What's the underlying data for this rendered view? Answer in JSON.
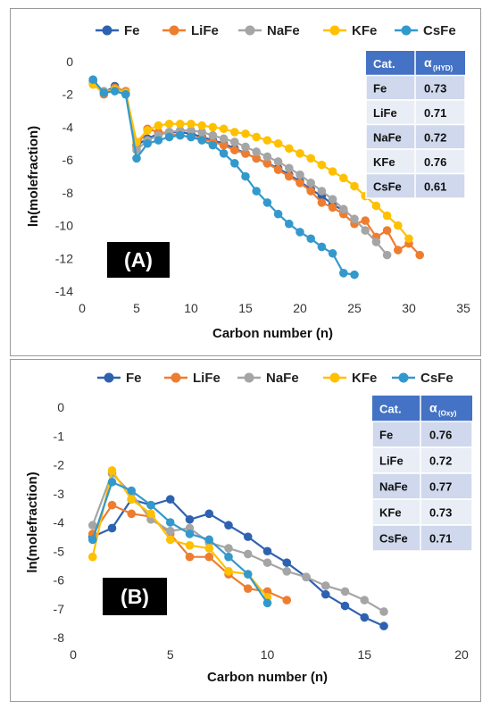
{
  "chart_data": [
    {
      "type": "line",
      "panel_label": "(A)",
      "xlabel": "Carbon number (n)",
      "ylabel": "ln(molefraction)",
      "xlim": [
        0,
        35
      ],
      "ylim": [
        -14,
        0
      ],
      "xticks": [
        "0",
        "5",
        "10",
        "15",
        "20",
        "25",
        "30",
        "35"
      ],
      "yticks": [
        "0",
        "-2",
        "-4",
        "-6",
        "-8",
        "-10",
        "-12",
        "-14"
      ],
      "grid": false,
      "legend_position": "top",
      "series": [
        {
          "name": "Fe",
          "color": "#2e62b0",
          "points": [
            [
              1,
              -1.2
            ],
            [
              2,
              -1.9
            ],
            [
              3,
              -1.5
            ],
            [
              4,
              -1.9
            ],
            [
              5,
              -5.1
            ],
            [
              6,
              -4.7
            ],
            [
              7,
              -4.4
            ],
            [
              8,
              -4.3
            ],
            [
              9,
              -4.3
            ],
            [
              10,
              -4.4
            ],
            [
              11,
              -4.6
            ],
            [
              12,
              -4.8
            ],
            [
              13,
              -5.0
            ],
            [
              14,
              -5.3
            ],
            [
              15,
              -5.6
            ],
            [
              16,
              -5.9
            ],
            [
              17,
              -6.2
            ],
            [
              18,
              -6.5
            ],
            [
              19,
              -6.9
            ],
            [
              20,
              -7.3
            ],
            [
              21,
              -7.8
            ],
            [
              22,
              -8.2
            ],
            [
              23,
              -8.7
            ],
            [
              24,
              -9.1
            ]
          ]
        },
        {
          "name": "LiFe",
          "color": "#ee7d30",
          "points": [
            [
              1,
              -1.3
            ],
            [
              2,
              -2.0
            ],
            [
              3,
              -1.6
            ],
            [
              4,
              -1.8
            ],
            [
              5,
              -5.2
            ],
            [
              6,
              -4.1
            ],
            [
              7,
              -4.3
            ],
            [
              8,
              -4.4
            ],
            [
              9,
              -4.5
            ],
            [
              10,
              -4.6
            ],
            [
              11,
              -4.7
            ],
            [
              12,
              -4.9
            ],
            [
              13,
              -5.1
            ],
            [
              14,
              -5.4
            ],
            [
              15,
              -5.6
            ],
            [
              16,
              -5.9
            ],
            [
              17,
              -6.2
            ],
            [
              18,
              -6.6
            ],
            [
              19,
              -7.0
            ],
            [
              20,
              -7.4
            ],
            [
              21,
              -7.9
            ],
            [
              22,
              -8.6
            ],
            [
              23,
              -8.9
            ],
            [
              24,
              -9.3
            ],
            [
              25,
              -9.9
            ],
            [
              26,
              -9.7
            ],
            [
              27,
              -10.7
            ],
            [
              28,
              -10.3
            ],
            [
              29,
              -11.5
            ],
            [
              30,
              -11.1
            ],
            [
              31,
              -11.8
            ]
          ]
        },
        {
          "name": "NaFe",
          "color": "#a5a5a5",
          "points": [
            [
              1,
              -1.3
            ],
            [
              2,
              -1.8
            ],
            [
              3,
              -1.7
            ],
            [
              4,
              -1.9
            ],
            [
              5,
              -5.4
            ],
            [
              6,
              -4.8
            ],
            [
              7,
              -4.5
            ],
            [
              8,
              -4.3
            ],
            [
              9,
              -4.2
            ],
            [
              10,
              -4.2
            ],
            [
              11,
              -4.3
            ],
            [
              12,
              -4.5
            ],
            [
              13,
              -4.7
            ],
            [
              14,
              -4.9
            ],
            [
              15,
              -5.2
            ],
            [
              16,
              -5.5
            ],
            [
              17,
              -5.8
            ],
            [
              18,
              -6.1
            ],
            [
              19,
              -6.5
            ],
            [
              20,
              -6.9
            ],
            [
              21,
              -7.4
            ],
            [
              22,
              -7.9
            ],
            [
              23,
              -8.4
            ],
            [
              24,
              -9.0
            ],
            [
              25,
              -9.6
            ],
            [
              26,
              -10.3
            ],
            [
              27,
              -11.0
            ],
            [
              28,
              -11.8
            ]
          ]
        },
        {
          "name": "KFe",
          "color": "#ffc000",
          "points": [
            [
              1,
              -1.4
            ],
            [
              2,
              -1.9
            ],
            [
              3,
              -1.7
            ],
            [
              4,
              -1.9
            ],
            [
              5,
              -4.9
            ],
            [
              6,
              -4.2
            ],
            [
              7,
              -3.9
            ],
            [
              8,
              -3.8
            ],
            [
              9,
              -3.8
            ],
            [
              10,
              -3.8
            ],
            [
              11,
              -3.9
            ],
            [
              12,
              -4.0
            ],
            [
              13,
              -4.1
            ],
            [
              14,
              -4.3
            ],
            [
              15,
              -4.4
            ],
            [
              16,
              -4.6
            ],
            [
              17,
              -4.8
            ],
            [
              18,
              -5.0
            ],
            [
              19,
              -5.3
            ],
            [
              20,
              -5.6
            ],
            [
              21,
              -5.9
            ],
            [
              22,
              -6.3
            ],
            [
              23,
              -6.7
            ],
            [
              24,
              -7.1
            ],
            [
              25,
              -7.6
            ],
            [
              26,
              -8.2
            ],
            [
              27,
              -8.8
            ],
            [
              28,
              -9.4
            ],
            [
              29,
              -10.0
            ],
            [
              30,
              -10.8
            ]
          ]
        },
        {
          "name": "CsFe",
          "color": "#3399cc",
          "points": [
            [
              1,
              -1.1
            ],
            [
              2,
              -1.9
            ],
            [
              3,
              -1.8
            ],
            [
              4,
              -2.0
            ],
            [
              5,
              -5.9
            ],
            [
              6,
              -5.0
            ],
            [
              7,
              -4.8
            ],
            [
              8,
              -4.6
            ],
            [
              9,
              -4.5
            ],
            [
              10,
              -4.6
            ],
            [
              11,
              -4.8
            ],
            [
              12,
              -5.1
            ],
            [
              13,
              -5.6
            ],
            [
              14,
              -6.2
            ],
            [
              15,
              -7.0
            ],
            [
              16,
              -7.9
            ],
            [
              17,
              -8.6
            ],
            [
              18,
              -9.3
            ],
            [
              19,
              -9.9
            ],
            [
              20,
              -10.4
            ],
            [
              21,
              -10.8
            ],
            [
              22,
              -11.3
            ],
            [
              23,
              -11.7
            ],
            [
              24,
              -12.9
            ],
            [
              25,
              -13.0
            ]
          ]
        }
      ],
      "table": {
        "header": [
          "Cat.",
          "α",
          "(HYD)"
        ],
        "rows": [
          [
            "Fe",
            "0.73"
          ],
          [
            "LiFe",
            "0.71"
          ],
          [
            "NaFe",
            "0.72"
          ],
          [
            "KFe",
            "0.76"
          ],
          [
            "CsFe",
            "0.61"
          ]
        ]
      }
    },
    {
      "type": "line",
      "panel_label": "(B)",
      "xlabel": "Carbon number (n)",
      "ylabel": "ln(molefraction)",
      "xlim": [
        0,
        20
      ],
      "ylim": [
        -8,
        0
      ],
      "xticks": [
        "0",
        "5",
        "10",
        "15",
        "20"
      ],
      "yticks": [
        "0",
        "-1",
        "-2",
        "-3",
        "-4",
        "-5",
        "-6",
        "-7",
        "-8"
      ],
      "grid": false,
      "legend_position": "top",
      "series": [
        {
          "name": "Fe",
          "color": "#2e62b0",
          "points": [
            [
              1,
              -4.5
            ],
            [
              2,
              -4.2
            ],
            [
              3,
              -3.2
            ],
            [
              4,
              -3.4
            ],
            [
              5,
              -3.2
            ],
            [
              6,
              -3.9
            ],
            [
              7,
              -3.7
            ],
            [
              8,
              -4.1
            ],
            [
              9,
              -4.5
            ],
            [
              10,
              -5.0
            ],
            [
              11,
              -5.4
            ],
            [
              12,
              -5.9
            ],
            [
              13,
              -6.5
            ],
            [
              14,
              -6.9
            ],
            [
              15,
              -7.3
            ],
            [
              16,
              -7.6
            ]
          ]
        },
        {
          "name": "LiFe",
          "color": "#ee7d30",
          "points": [
            [
              1,
              -4.4
            ],
            [
              2,
              -3.4
            ],
            [
              3,
              -3.7
            ],
            [
              4,
              -3.8
            ],
            [
              5,
              -4.4
            ],
            [
              6,
              -5.2
            ],
            [
              7,
              -5.2
            ],
            [
              8,
              -5.8
            ],
            [
              9,
              -6.3
            ],
            [
              10,
              -6.4
            ],
            [
              11,
              -6.7
            ]
          ]
        },
        {
          "name": "NaFe",
          "color": "#a5a5a5",
          "points": [
            [
              1,
              -4.1
            ],
            [
              2,
              -2.3
            ],
            [
              3,
              -3.0
            ],
            [
              4,
              -3.9
            ],
            [
              5,
              -4.3
            ],
            [
              6,
              -4.2
            ],
            [
              7,
              -4.7
            ],
            [
              8,
              -4.9
            ],
            [
              9,
              -5.1
            ],
            [
              10,
              -5.4
            ],
            [
              11,
              -5.7
            ],
            [
              12,
              -5.9
            ],
            [
              13,
              -6.2
            ],
            [
              14,
              -6.4
            ],
            [
              15,
              -6.7
            ],
            [
              16,
              -7.1
            ]
          ]
        },
        {
          "name": "KFe",
          "color": "#ffc000",
          "points": [
            [
              1,
              -5.2
            ],
            [
              2,
              -2.2
            ],
            [
              3,
              -3.2
            ],
            [
              4,
              -3.7
            ],
            [
              5,
              -4.6
            ],
            [
              6,
              -4.8
            ],
            [
              7,
              -4.9
            ],
            [
              8,
              -5.7
            ],
            [
              9,
              -5.8
            ],
            [
              10,
              -6.6
            ]
          ]
        },
        {
          "name": "CsFe",
          "color": "#3399cc",
          "points": [
            [
              1,
              -4.6
            ],
            [
              2,
              -2.6
            ],
            [
              3,
              -2.9
            ],
            [
              4,
              -3.4
            ],
            [
              5,
              -4.0
            ],
            [
              6,
              -4.4
            ],
            [
              7,
              -4.6
            ],
            [
              8,
              -5.2
            ],
            [
              9,
              -5.8
            ],
            [
              10,
              -6.8
            ]
          ]
        }
      ],
      "table": {
        "header": [
          "Cat.",
          "α",
          " (Oxy)"
        ],
        "rows": [
          [
            "Fe",
            "0.76"
          ],
          [
            "LiFe",
            "0.72"
          ],
          [
            "NaFe",
            "0.77"
          ],
          [
            "KFe",
            "0.73"
          ],
          [
            "CsFe",
            "0.71"
          ]
        ]
      }
    }
  ]
}
